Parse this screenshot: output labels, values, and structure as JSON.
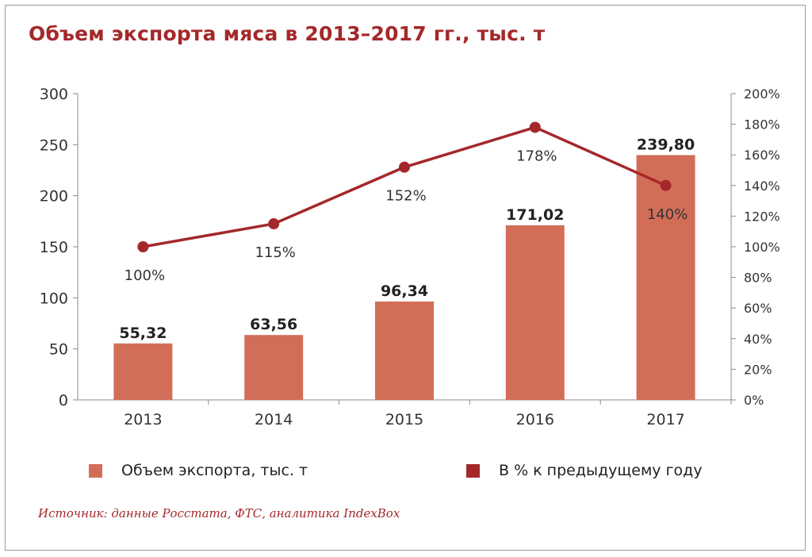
{
  "title": "Объем экспорта мяса в 2013–2017 гг., тыс. т",
  "source": "Источник: данные Росстата, ФТС, аналитика IndexBox",
  "legend": {
    "bars": "Объем экспорта, тыс. т",
    "line": "В % к предыдущему году"
  },
  "colors": {
    "bar": "#d26e58",
    "line": "#a4282a",
    "title": "#a4282a"
  },
  "chart_data": {
    "type": "bar",
    "categories": [
      "2013",
      "2014",
      "2015",
      "2016",
      "2017"
    ],
    "series": [
      {
        "name": "Объем экспорта, тыс. т",
        "type": "bar",
        "axis": "left",
        "values": [
          55.32,
          63.56,
          96.34,
          171.02,
          239.8
        ],
        "labels": [
          "55,32",
          "63,56",
          "96,34",
          "171,02",
          "239,80"
        ]
      },
      {
        "name": "В % к предыдущему году",
        "type": "line",
        "axis": "right",
        "values": [
          100,
          115,
          152,
          178,
          140
        ],
        "labels": [
          "100%",
          "115%",
          "152%",
          "178%",
          "140%"
        ]
      }
    ],
    "y_left": {
      "min": 0,
      "max": 300,
      "ticks": [
        "0",
        "50",
        "100",
        "150",
        "200",
        "250",
        "300"
      ]
    },
    "y_right": {
      "min": 0,
      "max": 200,
      "ticks": [
        "0%",
        "20%",
        "40%",
        "60%",
        "80%",
        "100%",
        "120%",
        "140%",
        "160%",
        "180%",
        "200%"
      ]
    },
    "grid": false,
    "legend_position": "bottom"
  }
}
